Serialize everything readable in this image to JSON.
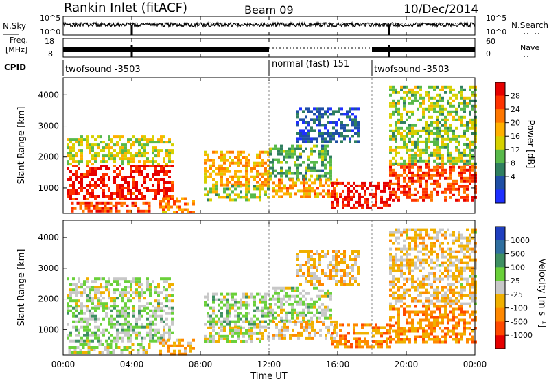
{
  "header": {
    "title": "Rankin Inlet (fitACF)",
    "beam": "Beam 09",
    "date": "10/Dec/2014"
  },
  "noise_panel": {
    "left_label": "N.Sky",
    "right_label": "N.Search",
    "left_ticks": [
      "10^5",
      "10^0"
    ],
    "right_ticks": [
      "10^5",
      "10^0"
    ]
  },
  "freq_panel": {
    "left_label_1": "Freq.",
    "left_label_2": "[MHz]",
    "right_label": "Nave",
    "left_ticks": [
      "18",
      "8"
    ],
    "right_ticks": [
      "60",
      "0"
    ]
  },
  "cpid": {
    "label": "CPID",
    "segments": [
      {
        "text": "twofsound -3503",
        "start_hour": 0
      },
      {
        "text": "normal (fast) 151",
        "start_hour": 12
      },
      {
        "text": "twofsound -3503",
        "start_hour": 18
      }
    ]
  },
  "axes": {
    "time_ticks": [
      "00:00",
      "04:00",
      "08:00",
      "12:00",
      "16:00",
      "20:00",
      "00:00"
    ],
    "time_label": "Time UT",
    "range_label": "Slant Range [km]",
    "range_ticks": [
      "1000",
      "2000",
      "3000",
      "4000"
    ]
  },
  "colorbars": {
    "power": {
      "label": "Power [dB]",
      "ticks": [
        "28",
        "24",
        "20",
        "16",
        "12",
        "8",
        "4"
      ],
      "colors": [
        "#e60000",
        "#ff3300",
        "#ff7700",
        "#ffb000",
        "#d6d100",
        "#58b94a",
        "#2f7f5f",
        "#1f4fa5",
        "#1e2fff"
      ]
    },
    "velocity": {
      "label": "Velocity [m s⁻¹]",
      "ticks": [
        "1000",
        "500",
        "100",
        "25",
        "-25",
        "-100",
        "-500",
        "-1000"
      ],
      "colors": [
        "#1f3fbf",
        "#2f6fa0",
        "#3e8f62",
        "#6ad03a",
        "#c8c8c8",
        "#f0b000",
        "#ff8800",
        "#ff4a00",
        "#e60000"
      ]
    }
  },
  "chart_data": {
    "type": "heatmap",
    "title": "Rankin Inlet (fitACF)",
    "xlabel": "Time UT",
    "ylabel": "Slant Range [km]",
    "xlim": [
      0,
      24
    ],
    "ylim": [
      180,
      4560
    ],
    "panels": [
      {
        "name": "Power",
        "unit": "dB",
        "clim": [
          0,
          32
        ],
        "blobs": [
          {
            "t": [
              0.2,
              6.4
            ],
            "r": [
              650,
              1750
            ],
            "v": 29
          },
          {
            "t": [
              0.2,
              6.4
            ],
            "r": [
              1750,
              2700
            ],
            "v": 16
          },
          {
            "t": [
              0.3,
              5.0
            ],
            "r": [
              280,
              560
            ],
            "v": 26
          },
          {
            "t": [
              5.6,
              7.6
            ],
            "r": [
              250,
              700
            ],
            "v": 22
          },
          {
            "t": [
              8.2,
              12.0
            ],
            "r": [
              1100,
              2200
            ],
            "v": 20
          },
          {
            "t": [
              8.2,
              12.0
            ],
            "r": [
              600,
              1100
            ],
            "v": 14
          },
          {
            "t": [
              12.0,
              15.6
            ],
            "r": [
              1300,
              2400
            ],
            "v": 11
          },
          {
            "t": [
              12.2,
              16.0
            ],
            "r": [
              700,
              1300
            ],
            "v": 21
          },
          {
            "t": [
              15.6,
              19.0
            ],
            "r": [
              400,
              1200
            ],
            "v": 30
          },
          {
            "t": [
              19.0,
              24.0
            ],
            "r": [
              600,
              1800
            ],
            "v": 26
          },
          {
            "t": [
              13.6,
              17.2
            ],
            "r": [
              2500,
              3600
            ],
            "v": 6
          },
          {
            "t": [
              19.0,
              24.0
            ],
            "r": [
              1800,
              4300
            ],
            "v": 14
          }
        ]
      },
      {
        "name": "Velocity",
        "unit": "m s-1",
        "clim": [
          -1000,
          1000
        ],
        "blobs": [
          {
            "t": [
              0.2,
              6.4
            ],
            "r": [
              650,
              1750
            ],
            "v": 160
          },
          {
            "t": [
              0.2,
              6.4
            ],
            "r": [
              1750,
              2700
            ],
            "v": 70
          },
          {
            "t": [
              0.3,
              5.0
            ],
            "r": [
              280,
              560
            ],
            "v": 0
          },
          {
            "t": [
              5.6,
              7.6
            ],
            "r": [
              250,
              700
            ],
            "v": -260
          },
          {
            "t": [
              8.2,
              12.0
            ],
            "r": [
              1100,
              2200
            ],
            "v": 120
          },
          {
            "t": [
              8.2,
              12.0
            ],
            "r": [
              600,
              1100
            ],
            "v": 10
          },
          {
            "t": [
              12.0,
              15.6
            ],
            "r": [
              1300,
              2400
            ],
            "v": 90
          },
          {
            "t": [
              12.2,
              16.0
            ],
            "r": [
              700,
              1300
            ],
            "v": -180
          },
          {
            "t": [
              15.6,
              19.0
            ],
            "r": [
              400,
              1200
            ],
            "v": -400
          },
          {
            "t": [
              19.0,
              24.0
            ],
            "r": [
              600,
              1800
            ],
            "v": -420
          },
          {
            "t": [
              13.6,
              17.2
            ],
            "r": [
              2500,
              3600
            ],
            "v": -200
          },
          {
            "t": [
              19.0,
              24.0
            ],
            "r": [
              1800,
              4300
            ],
            "v": -160
          }
        ]
      }
    ]
  }
}
